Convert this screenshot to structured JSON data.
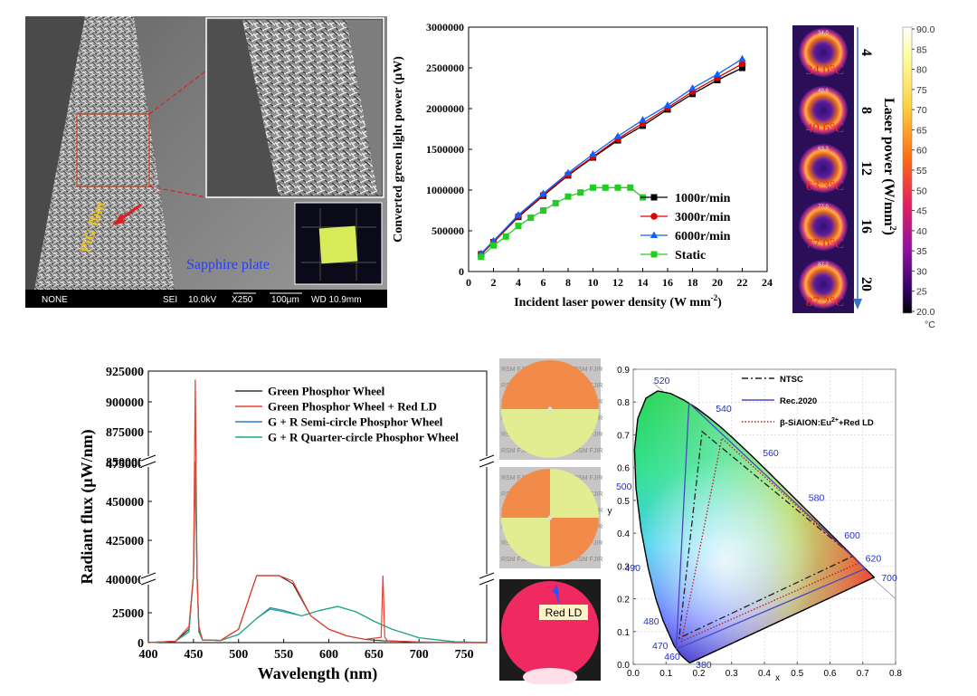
{
  "sem": {
    "pig_label": "PiG flim",
    "sapphire_label": "Sapphire plate",
    "scale_bar": [
      "NONE",
      "SEI",
      "10.0kV",
      "X250",
      "100μm",
      "WD 10.9mm"
    ]
  },
  "thermal": {
    "temperatures": [
      "34.0°C",
      "49.6°C",
      "63.3°C",
      "77.0°C",
      "87.2°C"
    ],
    "frame_labels": [
      "34.0",
      "49.6",
      "63.3",
      "77.0",
      "87.2"
    ],
    "laser_powers": [
      "4",
      "8",
      "12",
      "16",
      "20"
    ],
    "axis_title": "Laser power (W/mm",
    "axis_title_sup": "2",
    "axis_title_end": ")",
    "colorbar_ticks": [
      "90.0",
      "85",
      "80",
      "75",
      "70",
      "65",
      "60",
      "55",
      "50",
      "45",
      "40",
      "35",
      "30",
      "25",
      "20.0"
    ],
    "colorbar_unit": "°C"
  },
  "wheels": {
    "red_ld_label": "Red LD",
    "edge_text": "RSM FJIR"
  },
  "chart_data": [
    {
      "type": "line",
      "title": "",
      "xlabel": "Incident laser power density (W mm",
      "xlabel_sup": "-2",
      "xlabel_end": ")",
      "ylabel": "Converted green light power (μW)",
      "xlim": [
        0,
        24
      ],
      "ylim": [
        0,
        3000000
      ],
      "xticks": [
        "0",
        "2",
        "4",
        "6",
        "8",
        "10",
        "12",
        "14",
        "16",
        "18",
        "20",
        "22",
        "24"
      ],
      "yticks": [
        "0",
        "500000",
        "1000000",
        "1500000",
        "2000000",
        "2500000",
        "3000000"
      ],
      "legend_position": "lower-right",
      "series": [
        {
          "name": "1000r/min",
          "color": "#000000",
          "marker": "square",
          "x": [
            1,
            2,
            4,
            6,
            8,
            10,
            12,
            14,
            16,
            18,
            20,
            22
          ],
          "values": [
            210000,
            360000,
            670000,
            930000,
            1180000,
            1400000,
            1610000,
            1790000,
            1990000,
            2180000,
            2350000,
            2500000
          ]
        },
        {
          "name": "3000r/min",
          "color": "#e00000",
          "marker": "circle",
          "x": [
            1,
            2,
            4,
            6,
            8,
            10,
            12,
            14,
            16,
            18,
            20,
            22
          ],
          "values": [
            215000,
            365000,
            680000,
            940000,
            1190000,
            1410000,
            1630000,
            1820000,
            2010000,
            2210000,
            2380000,
            2550000
          ]
        },
        {
          "name": "6000r/min",
          "color": "#1060ff",
          "marker": "triangle",
          "x": [
            1,
            2,
            4,
            6,
            8,
            10,
            12,
            14,
            16,
            18,
            20,
            22
          ],
          "values": [
            220000,
            375000,
            695000,
            955000,
            1210000,
            1440000,
            1660000,
            1860000,
            2040000,
            2250000,
            2420000,
            2610000
          ]
        },
        {
          "name": "Static",
          "color": "#22cc22",
          "marker": "square",
          "x": [
            1,
            2,
            3,
            4,
            5,
            6,
            7,
            8,
            9,
            10,
            11,
            12,
            13,
            14
          ],
          "values": [
            180000,
            320000,
            430000,
            560000,
            660000,
            750000,
            840000,
            920000,
            970000,
            1030000,
            1030000,
            1030000,
            1030000,
            910000
          ]
        }
      ]
    },
    {
      "type": "line",
      "title": "",
      "xlabel": "Wavelength (nm)",
      "ylabel": "Radiant flux (μW/nm)",
      "xlim": [
        400,
        775
      ],
      "ylim": [
        0,
        925000
      ],
      "axis_breaks": [
        [
          25000,
          400000
        ],
        [
          475000,
          850000
        ]
      ],
      "xticks": [
        "400",
        "450",
        "500",
        "550",
        "600",
        "650",
        "700",
        "750"
      ],
      "yticks": [
        "0",
        "25000",
        "400000",
        "425000",
        "450000",
        "475000",
        "850000",
        "875000",
        "900000",
        "925000"
      ],
      "legend_position": "top-right",
      "series": [
        {
          "name": "Green Phosphor Wheel",
          "color": "#333333",
          "x": [
            400,
            430,
            445,
            450,
            452,
            454,
            456,
            460,
            480,
            500,
            520,
            535,
            545,
            560,
            580,
            600,
            620,
            640,
            660,
            700,
            740,
            775
          ],
          "values": [
            0,
            500,
            5000,
            150000,
            475000,
            150000,
            5000,
            1000,
            800,
            5000,
            25000,
            35000,
            33000,
            22000,
            10000,
            5000,
            2500,
            1200,
            700,
            200,
            0,
            0
          ]
        },
        {
          "name": "Green Phosphor Wheel + Red LD",
          "color": "#e84030",
          "x": [
            400,
            430,
            445,
            450,
            452,
            454,
            456,
            460,
            480,
            500,
            520,
            535,
            545,
            560,
            580,
            600,
            620,
            640,
            658,
            660,
            662,
            665,
            700,
            740,
            775
          ],
          "values": [
            0,
            500,
            6000,
            200000,
            918000,
            200000,
            6000,
            1000,
            800,
            5000,
            25000,
            36000,
            34000,
            23000,
            10000,
            5000,
            2500,
            1200,
            2000,
            47000,
            2000,
            700,
            200,
            0,
            0
          ]
        },
        {
          "name": "G + R Semi-circle Phosphor Wheel",
          "color": "#2f7fc0",
          "x": [
            400,
            430,
            445,
            450,
            452,
            454,
            456,
            460,
            480,
            500,
            520,
            535,
            550,
            570,
            590,
            610,
            630,
            650,
            670,
            700,
            740,
            775
          ],
          "values": [
            0,
            500,
            4000,
            100000,
            475000,
            100000,
            4000,
            1000,
            800,
            3000,
            9000,
            13000,
            12000,
            10000,
            12000,
            13500,
            11500,
            8000,
            5000,
            1800,
            300,
            0
          ]
        },
        {
          "name": "G + R Quarter-circle Phosphor Wheel",
          "color": "#20a880",
          "x": [
            400,
            430,
            445,
            450,
            452,
            454,
            456,
            460,
            480,
            500,
            520,
            535,
            550,
            570,
            590,
            610,
            630,
            650,
            670,
            700,
            740,
            775
          ],
          "values": [
            0,
            500,
            4000,
            90000,
            475000,
            90000,
            4000,
            1000,
            800,
            3000,
            9000,
            12500,
            11500,
            10000,
            12000,
            13500,
            11500,
            8000,
            5000,
            1800,
            300,
            0
          ]
        }
      ]
    },
    {
      "type": "scatter",
      "title": "",
      "xlabel": "x",
      "ylabel": "y",
      "xlim": [
        0,
        0.8
      ],
      "ylim": [
        0,
        0.9
      ],
      "xticks": [
        "0.0",
        "0.1",
        "0.2",
        "0.3",
        "0.4",
        "0.5",
        "0.6",
        "0.7",
        "0.8"
      ],
      "yticks": [
        "0.0",
        "0.1",
        "0.2",
        "0.3",
        "0.4",
        "0.5",
        "0.6",
        "0.7",
        "0.8",
        "0.9"
      ],
      "legend_position": "top-right",
      "spectral_locus": {
        "x": [
          0.1741,
          0.1738,
          0.1733,
          0.1726,
          0.1714,
          0.1689,
          0.1644,
          0.1566,
          0.144,
          0.1241,
          0.0913,
          0.0687,
          0.0454,
          0.0235,
          0.0082,
          0.0039,
          0.0139,
          0.0389,
          0.0743,
          0.1142,
          0.1547,
          0.1929,
          0.2296,
          0.2658,
          0.3016,
          0.3373,
          0.3731,
          0.4087,
          0.4441,
          0.4788,
          0.5125,
          0.5448,
          0.5752,
          0.6029,
          0.627,
          0.6482,
          0.6658,
          0.6801,
          0.6915,
          0.7006,
          0.7079,
          0.714,
          0.719,
          0.723,
          0.726,
          0.7283,
          0.73,
          0.7347
        ],
        "y": [
          0.005,
          0.0049,
          0.0048,
          0.0048,
          0.0051,
          0.0069,
          0.0109,
          0.0177,
          0.0297,
          0.0578,
          0.1327,
          0.2007,
          0.295,
          0.4127,
          0.5384,
          0.6548,
          0.7502,
          0.812,
          0.8338,
          0.8262,
          0.8059,
          0.7816,
          0.7543,
          0.7243,
          0.6923,
          0.6589,
          0.6245,
          0.5896,
          0.5547,
          0.5202,
          0.4866,
          0.4544,
          0.4242,
          0.3965,
          0.3725,
          0.3514,
          0.334,
          0.3197,
          0.3083,
          0.2993,
          0.292,
          0.2859,
          0.2809,
          0.277,
          0.274,
          0.2717,
          0.27,
          0.2653
        ]
      },
      "wavelength_labels": [
        {
          "text": "380",
          "x": 0.1741,
          "y": 0.005
        },
        {
          "text": "460",
          "x": 0.144,
          "y": 0.0297
        },
        {
          "text": "470",
          "x": 0.1241,
          "y": 0.0578
        },
        {
          "text": "480",
          "x": 0.0913,
          "y": 0.1327
        },
        {
          "text": "490",
          "x": 0.0454,
          "y": 0.295
        },
        {
          "text": "500",
          "x": 0.0082,
          "y": 0.5384
        },
        {
          "text": "520",
          "x": 0.0743,
          "y": 0.8338
        },
        {
          "text": "540",
          "x": 0.2296,
          "y": 0.7543
        },
        {
          "text": "560",
          "x": 0.3731,
          "y": 0.6245
        },
        {
          "text": "580",
          "x": 0.5125,
          "y": 0.4866
        },
        {
          "text": "600",
          "x": 0.627,
          "y": 0.3725
        },
        {
          "text": "620",
          "x": 0.6915,
          "y": 0.3083
        },
        {
          "text": "700",
          "x": 0.7347,
          "y": 0.2653
        }
      ],
      "series": [
        {
          "name": "NTSC",
          "color": "#222222",
          "style": "dash-dot",
          "x": [
            0.67,
            0.21,
            0.14,
            0.67
          ],
          "values": [
            0.33,
            0.71,
            0.08,
            0.33
          ]
        },
        {
          "name": "Rec.2020",
          "color": "#4a48c0",
          "style": "solid",
          "x": [
            0.708,
            0.17,
            0.131,
            0.708
          ],
          "values": [
            0.292,
            0.797,
            0.046,
            0.292
          ]
        },
        {
          "name": "β-SiAlON:Eu²⁺+Red LD",
          "name_prefix": "β-SiAlON:Eu",
          "name_sup": "2+",
          "name_suffix": "+Red LD",
          "color": "#c01818",
          "style": "dotted",
          "x": [
            0.69,
            0.27,
            0.147,
            0.69
          ],
          "values": [
            0.31,
            0.69,
            0.07,
            0.31
          ]
        }
      ]
    }
  ]
}
